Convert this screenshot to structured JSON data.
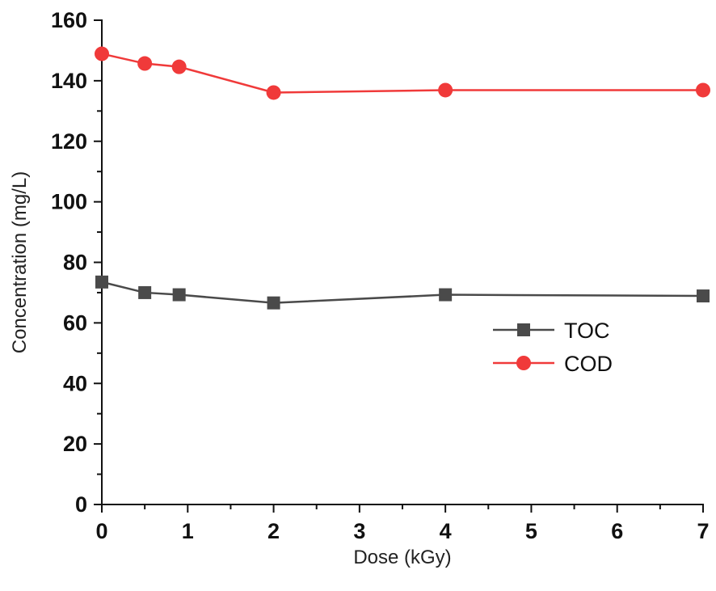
{
  "chart_data": {
    "type": "line",
    "title": "",
    "xlabel": "Dose (kGy)",
    "ylabel": "Concentration (mg/L)",
    "xlim": [
      0,
      7
    ],
    "ylim": [
      0,
      160
    ],
    "xticks": [
      0,
      1,
      2,
      3,
      4,
      5,
      6,
      7
    ],
    "yticks": [
      0,
      20,
      40,
      60,
      80,
      100,
      120,
      140,
      160
    ],
    "xtick_labels": [
      "0",
      "1",
      "2",
      "3",
      "4",
      "5",
      "6",
      "7"
    ],
    "ytick_labels": [
      "0",
      "20",
      "40",
      "60",
      "80",
      "100",
      "120",
      "140",
      "160"
    ],
    "grid": false,
    "legend_position": "center-right",
    "x": [
      0,
      0.5,
      0.9,
      2,
      4,
      7
    ],
    "series": [
      {
        "name": "TOC",
        "color": "#4a4a4a",
        "marker": "square",
        "values": [
          73.5,
          70.0,
          69.3,
          66.6,
          69.3,
          68.9
        ]
      },
      {
        "name": "COD",
        "color": "#f03a3a",
        "marker": "circle",
        "values": [
          148.9,
          145.7,
          144.6,
          136.1,
          136.9,
          136.9
        ]
      }
    ]
  }
}
